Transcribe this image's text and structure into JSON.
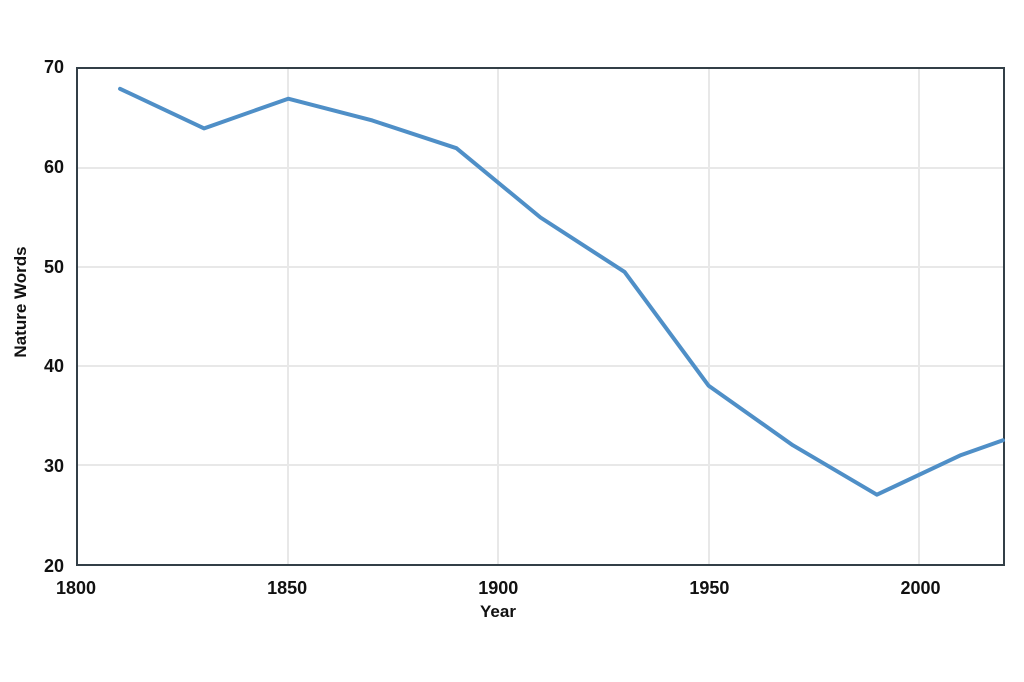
{
  "chart_data": {
    "type": "line",
    "title": "",
    "xlabel": "Year",
    "ylabel": "Nature Words",
    "series_name": "Nature Words",
    "x": [
      1810,
      1830,
      1850,
      1870,
      1890,
      1910,
      1930,
      1950,
      1970,
      1990,
      2010,
      2020
    ],
    "values": [
      68,
      64,
      67,
      64.8,
      62,
      55,
      49.5,
      38,
      32,
      27,
      31,
      32.5
    ],
    "xlim": [
      1800,
      2020
    ],
    "ylim": [
      20,
      70
    ],
    "xticks": [
      1800,
      1850,
      1900,
      1950,
      2000
    ],
    "yticks": [
      70,
      60,
      50,
      40,
      30,
      20
    ],
    "grid": true,
    "legend": false,
    "colors": {
      "line": "#4f8fc7",
      "frame": "#333f47",
      "grid": "#e8e8e8",
      "text": "#111111",
      "background": "#ffffff"
    }
  }
}
